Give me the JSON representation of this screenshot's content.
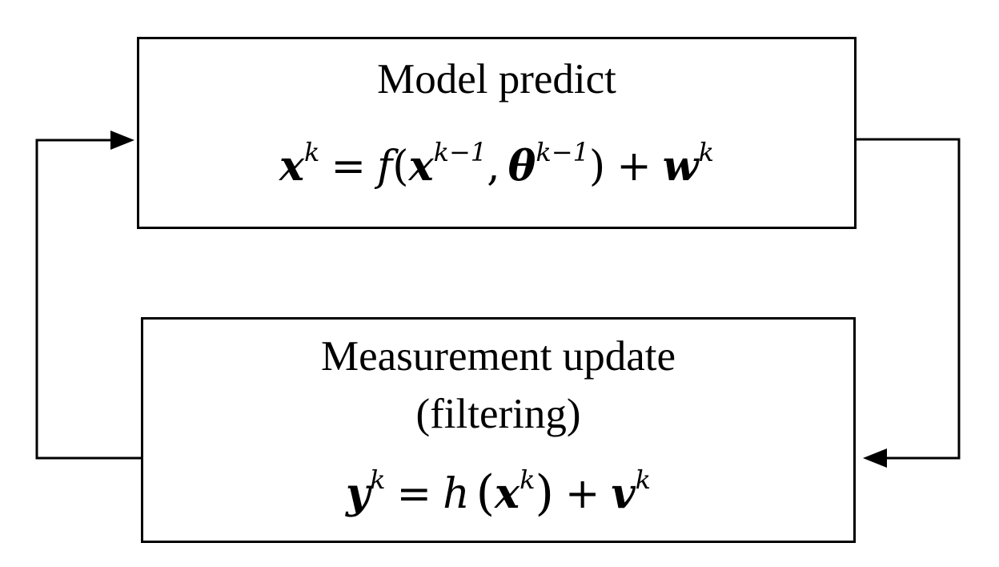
{
  "diagram": {
    "predict_box": {
      "title": "Model predict"
    },
    "update_box": {
      "title_line1": "Measurement update",
      "title_line2": "(filtering)"
    },
    "equations": {
      "state": {
        "lhs_var": "x",
        "lhs_sup": "k",
        "equals": "=",
        "func": "f",
        "open": "(",
        "arg1_var": "x",
        "arg1_sup": "k−1",
        "comma": ",",
        "arg2_var": "θ",
        "arg2_sup": "k−1",
        "close": ")",
        "plus": "+",
        "noise_var": "w",
        "noise_sup": "k"
      },
      "measurement": {
        "lhs_var": "y",
        "lhs_sup": "k",
        "equals": "=",
        "func": "h",
        "open": "(",
        "arg_var": "x",
        "arg_sup": "k",
        "close": ")",
        "plus": "+",
        "noise_var": "v",
        "noise_sup": "k"
      }
    },
    "colors": {
      "stroke": "#000000",
      "background": "#ffffff"
    }
  }
}
